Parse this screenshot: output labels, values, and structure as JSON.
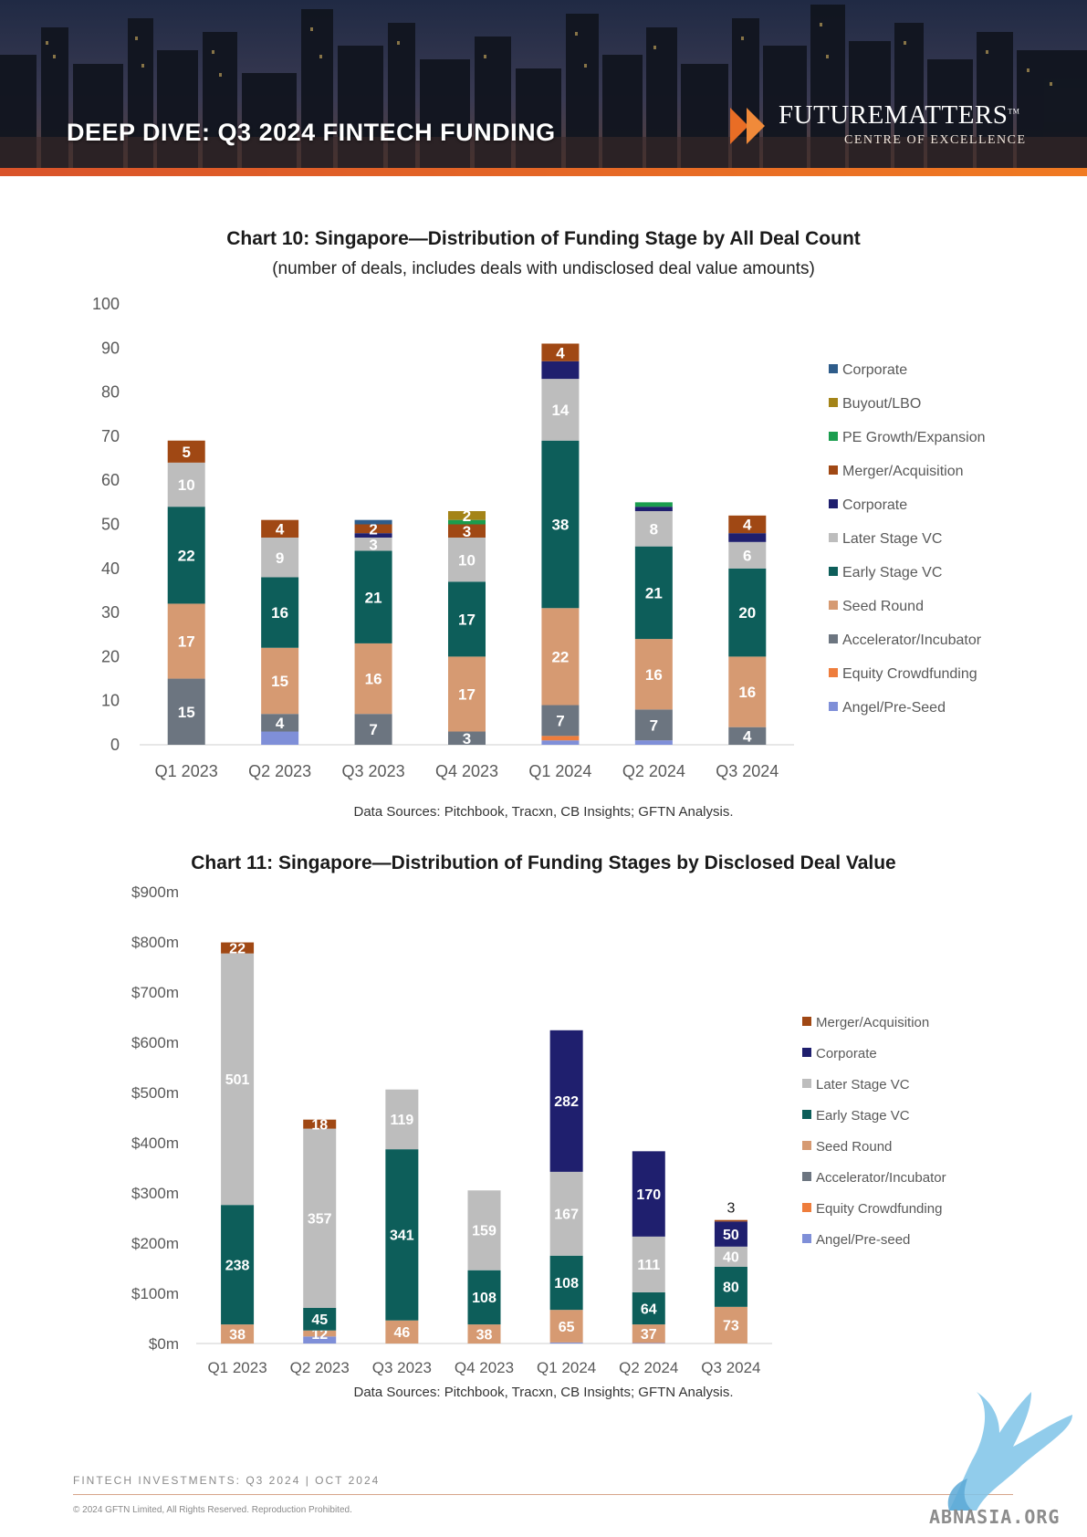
{
  "header": {
    "title": "DEEP DIVE: Q3 2024 FINTECH FUNDING",
    "brand_name": "FUTUREMATTERS",
    "brand_tm": "TM",
    "brand_tagline": "CENTRE OF EXCELLENCE"
  },
  "charts": {
    "chart10": {
      "title": "Chart 10: Singapore—Distribution of Funding Stage by All Deal Count",
      "subtitle": "(number of deals, includes deals with undisclosed deal value amounts)",
      "source": "Data Sources: Pitchbook, Tracxn, CB Insights; GFTN Analysis."
    },
    "chart11": {
      "title": "Chart 11: Singapore—Distribution of Funding Stages by Disclosed Deal Value",
      "source": "Data Sources: Pitchbook, Tracxn, CB Insights; GFTN Analysis."
    }
  },
  "footer": {
    "left": "FINTECH INVESTMENTS: Q3 2024   | OCT 2024",
    "copyright": "© 2024 GFTN Limited, All Rights Reserved. Reproduction Prohibited."
  },
  "watermark": {
    "text": "ABNASIA.ORG"
  },
  "colors": {
    "corporate_top": "#2e5c8a",
    "buyout": "#a48418",
    "pe_growth": "#1a9d4e",
    "merger": "#a04814",
    "corporate": "#1f1f6e",
    "later_stage": "#bdbdbd",
    "early_stage": "#0d5e5a",
    "seed": "#d69a72",
    "accelerator": "#6c7580",
    "equity_crowdfunding": "#ee7d3c",
    "angel": "#7f8fd8"
  },
  "chart_data": [
    {
      "type": "bar",
      "stacked": true,
      "title": "Chart 10: Singapore—Distribution of Funding Stage by All Deal Count",
      "subtitle": "(number of deals, includes deals with undisclosed deal value amounts)",
      "categories": [
        "Q1 2023",
        "Q2 2023",
        "Q3 2023",
        "Q4 2023",
        "Q1 2024",
        "Q2 2024",
        "Q3 2024"
      ],
      "ylim": [
        0,
        100
      ],
      "yticks": [
        0,
        10,
        20,
        30,
        40,
        50,
        60,
        70,
        80,
        90,
        100
      ],
      "ytick_labels": [
        "0",
        "10",
        "20",
        "30",
        "40",
        "50",
        "60",
        "70",
        "80",
        "90",
        "100"
      ],
      "grid": false,
      "legend_position": "right",
      "legend": [
        {
          "name": "Corporate",
          "color": "#2e5c8a"
        },
        {
          "name": "Buyout/LBO",
          "color": "#a48418"
        },
        {
          "name": "PE Growth/Expansion",
          "color": "#1a9d4e"
        },
        {
          "name": "Merger/Acquisition",
          "color": "#a04814"
        },
        {
          "name": "Corporate",
          "color": "#1f1f6e"
        },
        {
          "name": "Later Stage VC",
          "color": "#bdbdbd"
        },
        {
          "name": "Early Stage VC",
          "color": "#0d5e5a"
        },
        {
          "name": "Seed Round",
          "color": "#d69a72"
        },
        {
          "name": "Accelerator/Incubator",
          "color": "#6c7580"
        },
        {
          "name": "Equity Crowdfunding",
          "color": "#ee7d3c"
        },
        {
          "name": "Angel/Pre-Seed",
          "color": "#7f8fd8"
        }
      ],
      "series": [
        {
          "name": "Angel/Pre-Seed",
          "color": "#7f8fd8",
          "values": [
            0,
            3,
            0,
            0,
            1,
            1,
            0
          ],
          "labels": [
            "",
            "",
            "",
            "",
            "",
            "",
            ""
          ]
        },
        {
          "name": "Equity Crowdfunding",
          "color": "#ee7d3c",
          "values": [
            0,
            0,
            0,
            0,
            1,
            0,
            0
          ],
          "labels": [
            "",
            "",
            "",
            "",
            "",
            "",
            ""
          ]
        },
        {
          "name": "Accelerator/Incubator",
          "color": "#6c7580",
          "values": [
            15,
            4,
            7,
            3,
            7,
            7,
            4
          ],
          "labels": [
            "15",
            "4",
            "7",
            "3",
            "7",
            "7",
            "4"
          ]
        },
        {
          "name": "Seed Round",
          "color": "#d69a72",
          "values": [
            17,
            15,
            16,
            17,
            22,
            16,
            16
          ],
          "labels": [
            "17",
            "15",
            "16",
            "17",
            "22",
            "16",
            "16"
          ]
        },
        {
          "name": "Early Stage VC",
          "color": "#0d5e5a",
          "values": [
            22,
            16,
            21,
            17,
            38,
            21,
            20
          ],
          "labels": [
            "22",
            "16",
            "21",
            "17",
            "38",
            "21",
            "20"
          ]
        },
        {
          "name": "Later Stage VC",
          "color": "#bdbdbd",
          "values": [
            10,
            9,
            3,
            10,
            14,
            8,
            6
          ],
          "labels": [
            "10",
            "9",
            "3",
            "10",
            "14",
            "8",
            "6"
          ]
        },
        {
          "name": "Corporate",
          "color": "#1f1f6e",
          "values": [
            0,
            0,
            1,
            0,
            4,
            1,
            2
          ],
          "labels": [
            "",
            "",
            "",
            "",
            "",
            "",
            ""
          ]
        },
        {
          "name": "Merger/Acquisition",
          "color": "#a04814",
          "values": [
            5,
            4,
            2,
            3,
            4,
            0,
            4
          ],
          "labels": [
            "5",
            "4",
            "2",
            "3",
            "4",
            "",
            "4"
          ]
        },
        {
          "name": "PE Growth/Expansion",
          "color": "#1a9d4e",
          "values": [
            0,
            0,
            0,
            1,
            0,
            1,
            0
          ],
          "labels": [
            "",
            "",
            "",
            "",
            "",
            "",
            ""
          ]
        },
        {
          "name": "Buyout/LBO",
          "color": "#a48418",
          "values": [
            0,
            0,
            0,
            2,
            0,
            0,
            0
          ],
          "labels": [
            "",
            "",
            "",
            "2",
            "",
            "",
            ""
          ]
        },
        {
          "name": "Corporate",
          "color": "#2e5c8a",
          "values": [
            0,
            0,
            1,
            0,
            0,
            0,
            0
          ],
          "labels": [
            "",
            "",
            "",
            "",
            "",
            "",
            ""
          ]
        }
      ]
    },
    {
      "type": "bar",
      "stacked": true,
      "title": "Chart 11: Singapore—Distribution of Funding Stages by Disclosed Deal Value",
      "categories": [
        "Q1 2023",
        "Q2 2023",
        "Q3 2023",
        "Q4 2023",
        "Q1 2024",
        "Q2 2024",
        "Q3 2024"
      ],
      "ylim": [
        0,
        900
      ],
      "yticks": [
        0,
        100,
        200,
        300,
        400,
        500,
        600,
        700,
        800,
        900
      ],
      "ytick_labels": [
        "$0m",
        "$100m",
        "$200m",
        "$300m",
        "$400m",
        "$500m",
        "$600m",
        "$700m",
        "$800m",
        "$900m"
      ],
      "grid": false,
      "legend_position": "right",
      "legend": [
        {
          "name": "Merger/Acquisition",
          "color": "#a04814"
        },
        {
          "name": "Corporate",
          "color": "#1f1f6e"
        },
        {
          "name": "Later Stage VC",
          "color": "#bdbdbd"
        },
        {
          "name": "Early Stage VC",
          "color": "#0d5e5a"
        },
        {
          "name": "Seed Round",
          "color": "#d69a72"
        },
        {
          "name": "Accelerator/Incubator",
          "color": "#6c7580"
        },
        {
          "name": "Equity Crowdfunding",
          "color": "#ee7d3c"
        },
        {
          "name": "Angel/Pre-seed",
          "color": "#7f8fd8"
        }
      ],
      "series": [
        {
          "name": "Angel/Pre-seed",
          "color": "#7f8fd8",
          "values": [
            0,
            14,
            0,
            0,
            2,
            1,
            0
          ],
          "labels": [
            "",
            "",
            "",
            "",
            "",
            "",
            ""
          ]
        },
        {
          "name": "Equity Crowdfunding",
          "color": "#ee7d3c",
          "values": [
            0,
            0,
            0,
            0,
            0,
            0,
            0
          ],
          "labels": [
            "",
            "",
            "",
            "",
            "",
            "",
            ""
          ]
        },
        {
          "name": "Accelerator/Incubator",
          "color": "#6c7580",
          "values": [
            0,
            0,
            0,
            0,
            0,
            0,
            0
          ],
          "labels": [
            "",
            "",
            "",
            "",
            "",
            "",
            ""
          ]
        },
        {
          "name": "Seed Round",
          "color": "#d69a72",
          "values": [
            38,
            12,
            46,
            38,
            65,
            37,
            73
          ],
          "labels": [
            "38",
            "12",
            "46",
            "38",
            "65",
            "37",
            "73"
          ]
        },
        {
          "name": "Early Stage VC",
          "color": "#0d5e5a",
          "values": [
            238,
            45,
            341,
            108,
            108,
            64,
            80
          ],
          "labels": [
            "238",
            "45",
            "341",
            "108",
            "108",
            "64",
            "80"
          ]
        },
        {
          "name": "Later Stage VC",
          "color": "#bdbdbd",
          "values": [
            501,
            357,
            119,
            159,
            167,
            111,
            40
          ],
          "labels": [
            "501",
            "357",
            "119",
            "159",
            "167",
            "111",
            "40"
          ]
        },
        {
          "name": "Corporate",
          "color": "#1f1f6e",
          "values": [
            0,
            0,
            0,
            0,
            282,
            170,
            50
          ],
          "labels": [
            "",
            "",
            "",
            "",
            "282",
            "170",
            "50"
          ]
        },
        {
          "name": "Merger/Acquisition",
          "color": "#a04814",
          "values": [
            22,
            18,
            0,
            0,
            0,
            0,
            3
          ],
          "labels": [
            "22",
            "18",
            "",
            "",
            "",
            "",
            "3"
          ]
        }
      ]
    }
  ]
}
